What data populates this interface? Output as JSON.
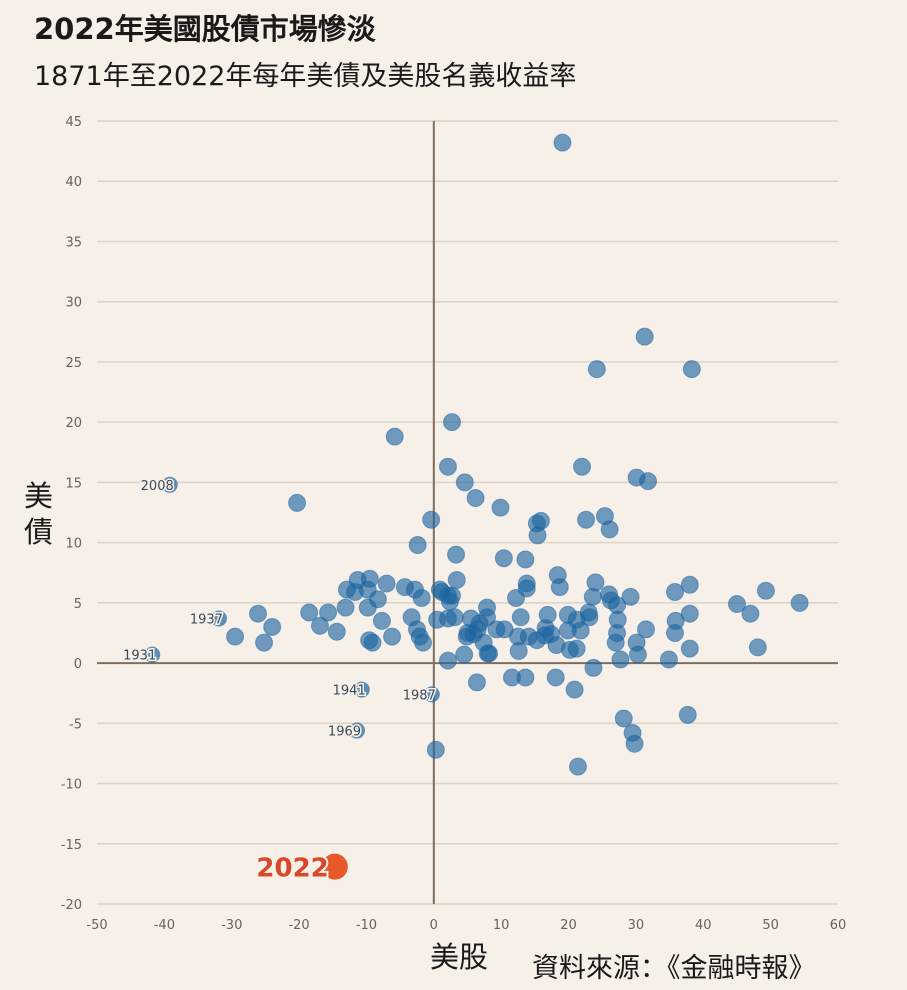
{
  "title": "2022年美國股債市場慘淡",
  "subtitle": "1871年至2022年每年美債及美股名義收益率",
  "source": "資料來源：《金融時報》",
  "colors": {
    "point": "#1c64a0",
    "highlight": "#e8592a",
    "highlight_label": "#d9472a",
    "axis": "#7d6e5f",
    "grid": "#dcd3c9",
    "background": "#f6f0e9"
  },
  "chart_data": {
    "type": "scatter",
    "title": "2022年美國股債市場慘淡",
    "subtitle": "1871年至2022年每年美債及美股名義收益率",
    "xlabel": "美股",
    "ylabel": "美債",
    "xlim": [
      -50,
      60
    ],
    "ylim": [
      -20,
      45
    ],
    "xticks": [
      -50,
      -40,
      -30,
      -20,
      -10,
      0,
      10,
      20,
      30,
      40,
      50,
      60
    ],
    "yticks": [
      45,
      40,
      35,
      30,
      25,
      20,
      15,
      10,
      5,
      0,
      -5,
      -10,
      -15,
      -20
    ],
    "grid": "horizontal",
    "points": [
      [
        19.1,
        43.2
      ],
      [
        31.3,
        27.1
      ],
      [
        24.2,
        24.4
      ],
      [
        38.3,
        24.4
      ],
      [
        -5.8,
        18.8
      ],
      [
        2.7,
        20.0
      ],
      [
        -20.3,
        13.3
      ],
      [
        2.1,
        16.3
      ],
      [
        4.6,
        15.0
      ],
      [
        6.2,
        13.7
      ],
      [
        22.0,
        16.3
      ],
      [
        30.1,
        15.4
      ],
      [
        31.8,
        15.1
      ],
      [
        9.9,
        12.9
      ],
      [
        -0.4,
        11.9
      ],
      [
        15.3,
        11.6
      ],
      [
        15.9,
        11.8
      ],
      [
        22.6,
        11.9
      ],
      [
        25.4,
        12.2
      ],
      [
        26.1,
        11.1
      ],
      [
        15.4,
        10.6
      ],
      [
        -2.4,
        9.8
      ],
      [
        3.3,
        9.0
      ],
      [
        10.4,
        8.7
      ],
      [
        13.6,
        8.6
      ],
      [
        18.4,
        7.3
      ],
      [
        3.4,
        6.9
      ],
      [
        13.8,
        6.6
      ],
      [
        13.8,
        6.2
      ],
      [
        18.7,
        6.3
      ],
      [
        24.0,
        6.7
      ],
      [
        26.0,
        5.7
      ],
      [
        26.3,
        5.2
      ],
      [
        29.2,
        5.5
      ],
      [
        27.2,
        4.8
      ],
      [
        23.6,
        5.5
      ],
      [
        38.0,
        6.5
      ],
      [
        35.8,
        5.9
      ],
      [
        49.3,
        6.0
      ],
      [
        45.0,
        4.9
      ],
      [
        54.3,
        5.0
      ],
      [
        47.0,
        4.1
      ],
      [
        38.0,
        4.1
      ],
      [
        35.9,
        3.5
      ],
      [
        31.5,
        2.8
      ],
      [
        35.8,
        2.5
      ],
      [
        38.0,
        1.2
      ],
      [
        48.1,
        1.3
      ],
      [
        34.9,
        0.3
      ],
      [
        30.1,
        1.7
      ],
      [
        30.3,
        0.7
      ],
      [
        27.7,
        0.3
      ],
      [
        27.0,
        1.7
      ],
      [
        27.2,
        2.5
      ],
      [
        27.3,
        3.6
      ],
      [
        23.0,
        4.2
      ],
      [
        23.1,
        3.8
      ],
      [
        19.9,
        4.0
      ],
      [
        21.2,
        3.6
      ],
      [
        16.9,
        4.0
      ],
      [
        16.6,
        2.9
      ],
      [
        16.5,
        2.3
      ],
      [
        17.4,
        2.4
      ],
      [
        19.9,
        2.7
      ],
      [
        21.8,
        2.7
      ],
      [
        20.2,
        1.1
      ],
      [
        21.2,
        1.2
      ],
      [
        18.2,
        1.5
      ],
      [
        15.3,
        1.9
      ],
      [
        14.1,
        2.2
      ],
      [
        12.5,
        2.2
      ],
      [
        12.6,
        1.0
      ],
      [
        12.9,
        3.8
      ],
      [
        12.2,
        5.4
      ],
      [
        7.9,
        4.6
      ],
      [
        7.9,
        3.8
      ],
      [
        9.3,
        2.8
      ],
      [
        10.5,
        2.8
      ],
      [
        6.8,
        3.3
      ],
      [
        5.5,
        3.7
      ],
      [
        6.5,
        2.8
      ],
      [
        5.9,
        2.4
      ],
      [
        4.9,
        2.2
      ],
      [
        5.0,
        2.5
      ],
      [
        7.4,
        1.7
      ],
      [
        8.2,
        0.8
      ],
      [
        8.0,
        0.8
      ],
      [
        4.5,
        0.7
      ],
      [
        2.1,
        0.2
      ],
      [
        3.1,
        3.8
      ],
      [
        2.1,
        3.7
      ],
      [
        2.4,
        5.1
      ],
      [
        2.7,
        5.6
      ],
      [
        1.2,
        5.9
      ],
      [
        0.9,
        6.1
      ],
      [
        2.1,
        5.6
      ],
      [
        0.5,
        3.6
      ],
      [
        6.4,
        -1.6
      ],
      [
        11.6,
        -1.2
      ],
      [
        13.6,
        -1.2
      ],
      [
        18.1,
        -1.2
      ],
      [
        20.9,
        -2.2
      ],
      [
        23.7,
        -0.4
      ],
      [
        0.3,
        -7.2
      ],
      [
        21.4,
        -8.6
      ],
      [
        28.2,
        -4.6
      ],
      [
        29.5,
        -5.8
      ],
      [
        29.8,
        -6.7
      ],
      [
        37.7,
        -4.3
      ],
      [
        -26.1,
        4.1
      ],
      [
        -24.0,
        3.0
      ],
      [
        -29.5,
        2.2
      ],
      [
        -25.2,
        1.7
      ],
      [
        -18.5,
        4.2
      ],
      [
        -15.7,
        4.2
      ],
      [
        -16.9,
        3.1
      ],
      [
        -14.4,
        2.6
      ],
      [
        -13.1,
        4.6
      ],
      [
        -12.9,
        6.1
      ],
      [
        -11.3,
        6.9
      ],
      [
        -9.5,
        7.0
      ],
      [
        -9.8,
        6.1
      ],
      [
        -11.7,
        5.9
      ],
      [
        -8.3,
        5.3
      ],
      [
        -9.8,
        4.6
      ],
      [
        -7.7,
        3.5
      ],
      [
        -6.2,
        2.2
      ],
      [
        -9.6,
        1.9
      ],
      [
        -9.1,
        1.7
      ],
      [
        -7.0,
        6.6
      ],
      [
        -4.3,
        6.3
      ],
      [
        -2.8,
        6.1
      ],
      [
        -1.8,
        5.4
      ],
      [
        -3.3,
        3.8
      ],
      [
        -2.5,
        2.8
      ],
      [
        -2.1,
        2.2
      ],
      [
        -1.6,
        1.7
      ]
    ],
    "labeled_points": [
      {
        "label": "2008",
        "x": -39.2,
        "y": 14.8
      },
      {
        "label": "1937",
        "x": -31.9,
        "y": 3.7
      },
      {
        "label": "1931",
        "x": -41.8,
        "y": 0.7
      },
      {
        "label": "1941",
        "x": -10.7,
        "y": -2.2
      },
      {
        "label": "1987",
        "x": -0.3,
        "y": -2.6
      },
      {
        "label": "1969",
        "x": -11.4,
        "y": -5.6
      }
    ],
    "highlight": {
      "label": "2022",
      "x": -14.7,
      "y": -16.9
    }
  }
}
